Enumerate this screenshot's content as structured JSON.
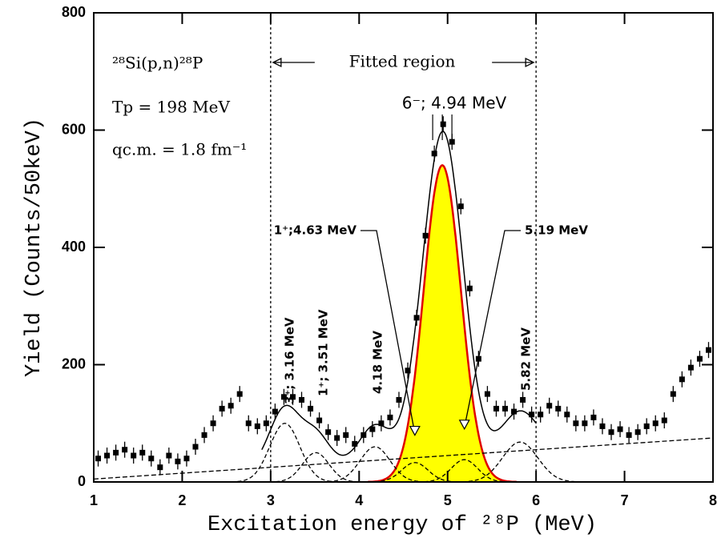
{
  "chart_data": {
    "type": "scatter",
    "x_label": "Excitation energy of ²⁸P (MeV)",
    "y_label": "Yield (Counts/50keV)",
    "annotations": [
      "²⁸Si(p,n)²⁸P",
      "Tp = 198 MeV",
      "qc.m. = 1.8 fm⁻¹"
    ],
    "fitted_region_label": "Fitted region",
    "fitted_region": [
      3,
      6
    ],
    "xlim": [
      1,
      8
    ],
    "ylim": [
      0,
      800
    ],
    "xticks": [
      1,
      2,
      3,
      4,
      5,
      6,
      7,
      8
    ],
    "yticks": [
      0,
      200,
      400,
      600,
      800
    ],
    "color": "#000000",
    "x": [
      1.05,
      1.15,
      1.25,
      1.35,
      1.45,
      1.55,
      1.65,
      1.75,
      1.85,
      1.95,
      2.05,
      2.15,
      2.25,
      2.35,
      2.45,
      2.55,
      2.65,
      2.75,
      2.85,
      2.95,
      3.05,
      3.15,
      3.25,
      3.35,
      3.45,
      3.55,
      3.65,
      3.75,
      3.85,
      3.95,
      4.05,
      4.15,
      4.25,
      4.35,
      4.45,
      4.55,
      4.65,
      4.75,
      4.85,
      4.95,
      5.05,
      5.15,
      5.25,
      5.35,
      5.45,
      5.55,
      5.65,
      5.75,
      5.85,
      5.95,
      6.05,
      6.15,
      6.25,
      6.35,
      6.45,
      6.55,
      6.65,
      6.75,
      6.85,
      6.95,
      7.05,
      7.15,
      7.25,
      7.35,
      7.45,
      7.55,
      7.65,
      7.75,
      7.85,
      7.95
    ],
    "values": [
      40,
      45,
      50,
      55,
      45,
      50,
      40,
      25,
      45,
      35,
      40,
      60,
      80,
      100,
      125,
      130,
      150,
      100,
      95,
      100,
      120,
      145,
      145,
      140,
      125,
      105,
      85,
      75,
      80,
      65,
      80,
      90,
      100,
      110,
      140,
      190,
      280,
      420,
      560,
      610,
      580,
      470,
      330,
      210,
      150,
      125,
      125,
      120,
      140,
      115,
      115,
      130,
      125,
      115,
      100,
      100,
      110,
      95,
      85,
      90,
      80,
      85,
      95,
      100,
      105,
      150,
      175,
      195,
      210,
      225
    ],
    "background": {
      "x": [
        1,
        8
      ],
      "values": [
        5,
        75
      ]
    },
    "fit_color": "#000000",
    "components": [
      {
        "label": "3⁺; 3.16 MeV",
        "center": 3.16,
        "amplitude": 100,
        "sigma": 0.17,
        "color": "#000000"
      },
      {
        "label": "1⁺; 3.51 MeV",
        "center": 3.51,
        "amplitude": 50,
        "sigma": 0.15,
        "color": "#000000"
      },
      {
        "label": "4.18 MeV",
        "center": 4.18,
        "amplitude": 60,
        "sigma": 0.17,
        "color": "#000000"
      },
      {
        "label": "1⁺;4.63 MeV",
        "center": 4.63,
        "amplitude": 33,
        "sigma": 0.15,
        "color": "#000000"
      },
      {
        "label": "6⁻; 4.94 MeV",
        "center": 4.94,
        "amplitude": 540,
        "sigma": 0.21,
        "color": "#e00000",
        "fill": "#ffff00"
      },
      {
        "label": "5.19 MeV",
        "center": 5.19,
        "amplitude": 38,
        "sigma": 0.15,
        "color": "#000000"
      },
      {
        "label": "5.82 MeV",
        "center": 5.82,
        "amplitude": 68,
        "sigma": 0.2,
        "color": "#000000"
      }
    ]
  }
}
